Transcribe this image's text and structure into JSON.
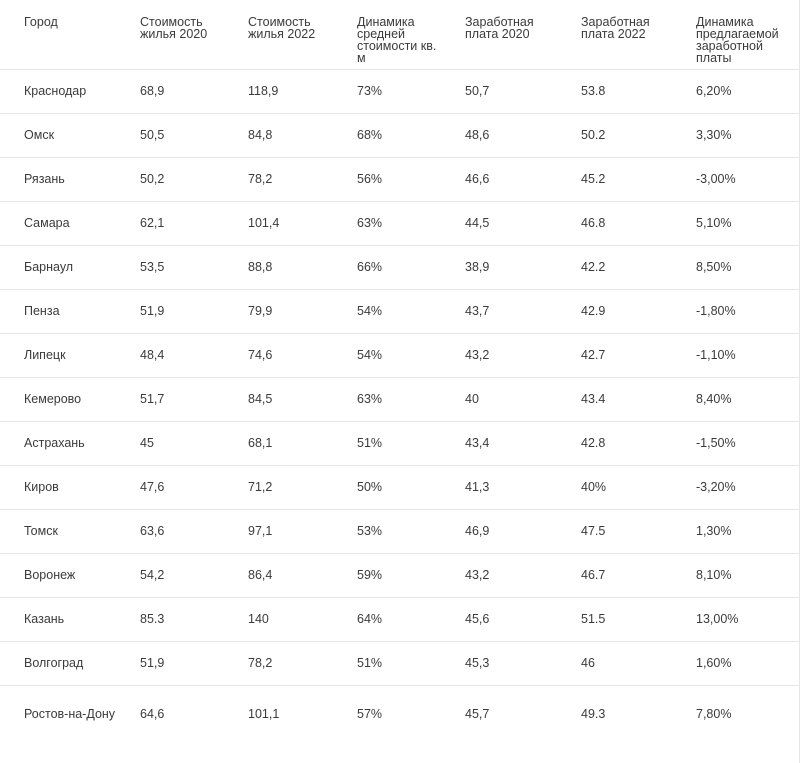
{
  "table": {
    "headers": [
      "Город",
      "Стоимость жилья 2020",
      "Стоимость жилья 2022",
      "Динамика средней стоимости кв. м",
      "Заработная плата 2020",
      "Заработная плата 2022",
      "Динамика предлагаемой заработной платы"
    ],
    "rows": [
      [
        "Краснодар",
        "68,9",
        "118,9",
        "73%",
        "50,7",
        "53.8",
        "6,20%"
      ],
      [
        "Омск",
        "50,5",
        "84,8",
        "68%",
        "48,6",
        "50.2",
        "3,30%"
      ],
      [
        "Рязань",
        "50,2",
        "78,2",
        "56%",
        "46,6",
        "45.2",
        "-3,00%"
      ],
      [
        "Самара",
        "62,1",
        "101,4",
        "63%",
        "44,5",
        "46.8",
        "5,10%"
      ],
      [
        "Барнаул",
        "53,5",
        "88,8",
        "66%",
        "38,9",
        "42.2",
        "8,50%"
      ],
      [
        "Пенза",
        "51,9",
        "79,9",
        "54%",
        "43,7",
        "42.9",
        "-1,80%"
      ],
      [
        "Липецк",
        "48,4",
        "74,6",
        "54%",
        "43,2",
        "42.7",
        "-1,10%"
      ],
      [
        "Кемерово",
        "51,7",
        "84,5",
        "63%",
        "40",
        "43.4",
        "8,40%"
      ],
      [
        "Астрахань",
        "45",
        "68,1",
        "51%",
        "43,4",
        "42.8",
        "-1,50%"
      ],
      [
        "Киров",
        "47,6",
        "71,2",
        "50%",
        "41,3",
        "40%",
        "-3,20%"
      ],
      [
        "Томск",
        "63,6",
        "97,1",
        "53%",
        "46,9",
        "47.5",
        "1,30%"
      ],
      [
        "Воронеж",
        "54,2",
        "86,4",
        "59%",
        "43,2",
        "46.7",
        "8,10%"
      ],
      [
        "Казань",
        "85.3",
        "140",
        "64%",
        "45,6",
        "51.5",
        "13,00%"
      ],
      [
        "Волгоград",
        "51,9",
        "78,2",
        "51%",
        "45,3",
        "46",
        "1,60%"
      ],
      [
        "Ростов-на-Дону",
        "64,6",
        "101,1",
        "57%",
        "45,7",
        "49.3",
        "7,80%"
      ]
    ]
  }
}
